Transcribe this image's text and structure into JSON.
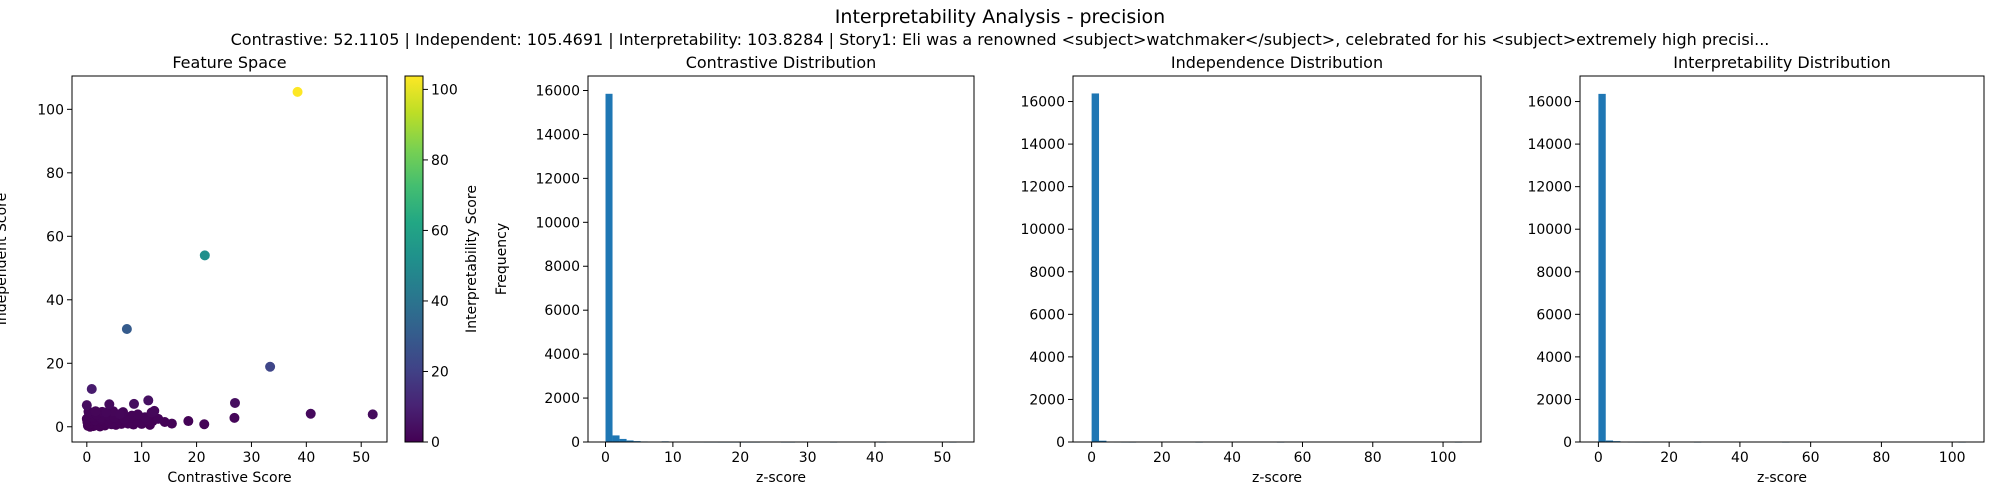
{
  "figure": {
    "title": "Interpretability Analysis - precision",
    "subtitle": "Contrastive: 52.1105 | Independent: 105.4691 | Interpretability: 103.8284 | Story1: Eli was a renowned <subject>watchmaker</subject>, celebrated for his <subject>extremely high precisi..."
  },
  "chart_data": [
    {
      "type": "scatter",
      "title": "Feature Space",
      "xlabel": "Contrastive Score",
      "ylabel": "Independent Score",
      "xlim": [
        -2.7,
        54.7
      ],
      "ylim": [
        -4.8,
        110.5
      ],
      "xticks": [
        0,
        10,
        20,
        30,
        40,
        50
      ],
      "yticks": [
        0,
        20,
        40,
        60,
        80,
        100
      ],
      "colorbar": {
        "label": "Interpretability Score",
        "cmap": "viridis",
        "range": [
          0,
          103.8
        ],
        "ticks": [
          0,
          20,
          40,
          60,
          80,
          100
        ]
      },
      "points": [
        [
          38.4,
          105.5,
          103.8
        ],
        [
          21.5,
          54.0,
          52.0
        ],
        [
          7.3,
          30.8,
          30.0
        ],
        [
          33.4,
          18.9,
          22.0
        ],
        [
          0.9,
          11.9,
          8.0
        ],
        [
          0.0,
          6.8,
          4.0
        ],
        [
          11.2,
          8.3,
          4.5
        ],
        [
          27.0,
          7.5,
          4.0
        ],
        [
          8.6,
          7.2,
          3.5
        ],
        [
          4.1,
          7.1,
          3.0
        ],
        [
          40.8,
          4.1,
          2.5
        ],
        [
          52.1,
          3.9,
          3.0
        ],
        [
          26.9,
          2.8,
          1.5
        ],
        [
          18.5,
          1.8,
          0.5
        ],
        [
          12.3,
          5.0,
          2.0
        ],
        [
          21.4,
          0.8,
          0.5
        ],
        [
          15.5,
          1.0,
          0.5
        ],
        [
          14.2,
          1.5,
          0.5
        ],
        [
          13.0,
          2.5,
          1.0
        ],
        [
          11.8,
          4.5,
          1.5
        ],
        [
          10.6,
          3.0,
          1.0
        ],
        [
          9.8,
          1.2,
          0.5
        ],
        [
          9.0,
          2.0,
          0.5
        ],
        [
          8.2,
          3.5,
          1.0
        ],
        [
          7.5,
          1.0,
          0.5
        ],
        [
          6.8,
          2.5,
          1.0
        ],
        [
          6.0,
          4.0,
          1.5
        ],
        [
          5.5,
          1.5,
          0.5
        ],
        [
          5.0,
          3.0,
          1.0
        ],
        [
          4.5,
          0.8,
          0.5
        ],
        [
          4.0,
          2.0,
          0.5
        ],
        [
          3.5,
          4.5,
          1.5
        ],
        [
          3.0,
          1.0,
          0.3
        ],
        [
          2.5,
          3.0,
          1.0
        ],
        [
          2.0,
          0.5,
          0.2
        ],
        [
          1.5,
          2.0,
          0.5
        ],
        [
          1.0,
          4.0,
          1.0
        ],
        [
          0.5,
          1.0,
          0.2
        ],
        [
          0.2,
          0.3,
          0.1
        ],
        [
          0.0,
          2.5,
          0.5
        ],
        [
          0.3,
          4.8,
          1.2
        ],
        [
          0.8,
          3.2,
          0.8
        ],
        [
          1.2,
          0.2,
          0.1
        ],
        [
          1.8,
          3.8,
          1.0
        ],
        [
          2.2,
          1.8,
          0.4
        ],
        [
          2.8,
          4.7,
          1.3
        ],
        [
          3.3,
          0.4,
          0.1
        ],
        [
          3.8,
          3.6,
          0.9
        ],
        [
          4.3,
          2.6,
          0.6
        ],
        [
          4.8,
          4.9,
          1.4
        ],
        [
          5.3,
          0.6,
          0.1
        ],
        [
          5.8,
          2.2,
          0.5
        ],
        [
          6.3,
          0.9,
          0.2
        ],
        [
          6.6,
          4.6,
          1.2
        ],
        [
          7.0,
          1.6,
          0.4
        ],
        [
          7.8,
          2.8,
          0.7
        ],
        [
          8.5,
          0.7,
          0.2
        ],
        [
          9.3,
          3.9,
          1.0
        ],
        [
          10.0,
          0.9,
          0.2
        ],
        [
          10.9,
          2.2,
          0.5
        ],
        [
          11.5,
          0.6,
          0.1
        ],
        [
          12.0,
          1.8,
          0.4
        ],
        [
          0.6,
          0.0,
          0.0
        ],
        [
          1.4,
          0.8,
          0.1
        ],
        [
          2.4,
          0.1,
          0.0
        ],
        [
          3.6,
          1.4,
          0.3
        ],
        [
          0.1,
          1.5,
          0.2
        ],
        [
          0.4,
          3.7,
          0.8
        ],
        [
          1.6,
          4.9,
          1.4
        ],
        [
          2.6,
          2.4,
          0.5
        ],
        [
          0.9,
          1.9,
          0.3
        ],
        [
          1.1,
          2.9,
          0.6
        ]
      ]
    },
    {
      "type": "bar",
      "title": "Contrastive Distribution",
      "xlabel": "z-score",
      "ylabel": "Frequency",
      "xlim": [
        -2.6,
        54.7
      ],
      "ylim": [
        0,
        16660
      ],
      "xticks": [
        0,
        10,
        20,
        30,
        40,
        50
      ],
      "yticks": [
        0,
        2000,
        4000,
        6000,
        8000,
        10000,
        12000,
        14000,
        16000
      ],
      "bin_start": 0,
      "bin_width": 1.042,
      "values": [
        15850,
        300,
        140,
        70,
        40,
        25,
        15,
        10,
        30,
        10,
        5,
        5,
        3,
        3,
        2,
        2,
        1,
        1,
        1,
        1,
        1,
        1,
        0,
        0,
        0,
        1,
        1,
        0,
        0,
        0,
        0,
        0,
        1,
        0,
        0,
        0,
        0,
        0,
        0,
        1,
        0,
        0,
        0,
        0,
        0,
        0,
        0,
        0,
        0,
        1
      ]
    },
    {
      "type": "bar",
      "title": "Independence Distribution",
      "xlabel": "z-score",
      "ylabel": "",
      "xlim": [
        -5.3,
        110.8
      ],
      "ylim": [
        0,
        17200
      ],
      "xticks": [
        0,
        20,
        40,
        60,
        80,
        100
      ],
      "yticks": [
        0,
        2000,
        4000,
        6000,
        8000,
        10000,
        12000,
        14000,
        16000
      ],
      "bin_start": 0,
      "bin_width": 2.109,
      "values": [
        16380,
        60,
        10,
        4,
        2,
        1,
        0,
        0,
        0,
        0,
        0,
        0,
        0,
        0,
        1,
        0,
        0,
        0,
        0,
        0,
        0,
        0,
        0,
        0,
        0,
        1,
        0,
        0,
        0,
        0,
        0,
        0,
        0,
        0,
        0,
        0,
        0,
        0,
        0,
        0,
        0,
        0,
        0,
        0,
        0,
        0,
        0,
        0,
        0,
        1
      ]
    },
    {
      "type": "bar",
      "title": "Interpretability Distribution",
      "xlabel": "z-score",
      "ylabel": "",
      "xlim": [
        -5.2,
        109.0
      ],
      "ylim": [
        0,
        17200
      ],
      "xticks": [
        0,
        20,
        40,
        60,
        80,
        100
      ],
      "yticks": [
        0,
        2000,
        4000,
        6000,
        8000,
        10000,
        12000,
        14000,
        16000
      ],
      "bin_start": 0,
      "bin_width": 2.077,
      "values": [
        16360,
        70,
        40,
        10,
        3,
        2,
        1,
        0,
        0,
        0,
        0,
        0,
        0,
        1,
        0,
        0,
        0,
        0,
        0,
        0,
        0,
        0,
        0,
        0,
        0,
        1,
        0,
        0,
        0,
        0,
        0,
        0,
        0,
        0,
        0,
        0,
        0,
        0,
        0,
        0,
        0,
        0,
        0,
        0,
        0,
        0,
        0,
        0,
        0,
        1
      ]
    }
  ]
}
